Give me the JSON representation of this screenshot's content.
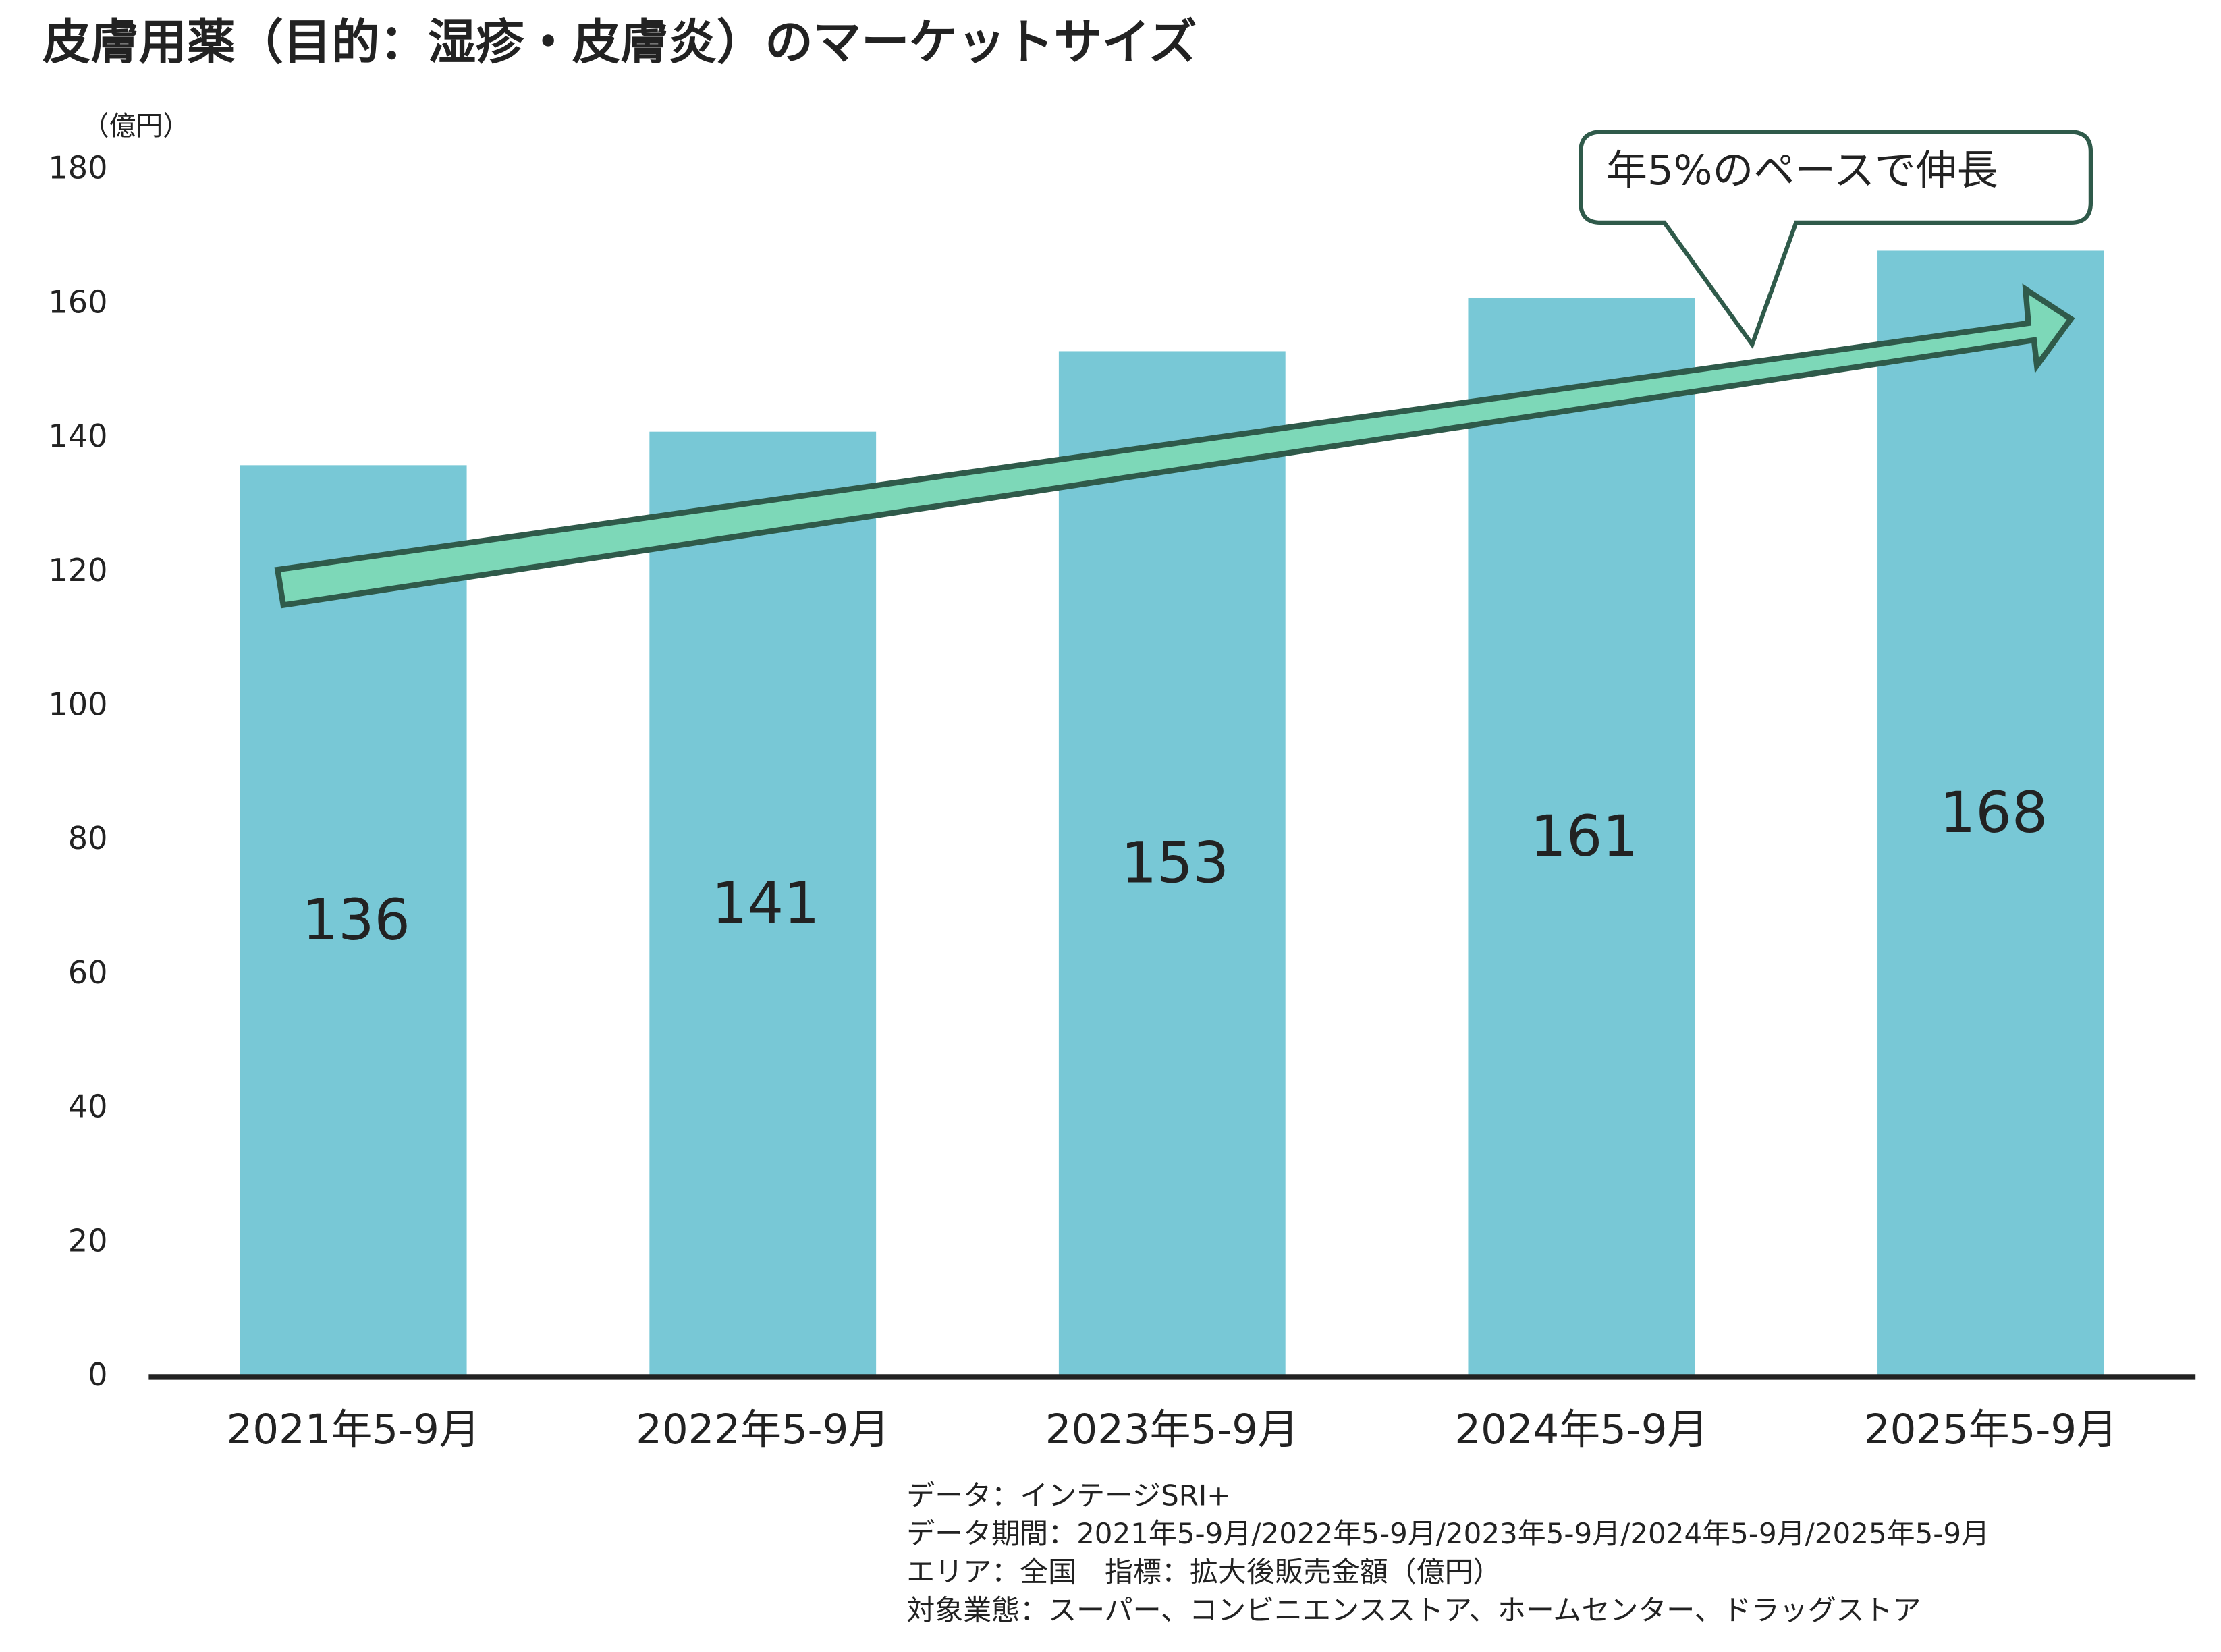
{
  "chart_data": {
    "type": "bar",
    "title": "皮膚用薬（目的：湿疹・皮膚炎）のマーケットサイズ",
    "y_unit": "（億円）",
    "annotation": "年5%のペースで伸長",
    "categories": [
      "2021年5-9月",
      "2022年5-9月",
      "2023年5-9月",
      "2024年5-9月",
      "2025年5-9月"
    ],
    "values": [
      136,
      141,
      153,
      161,
      168
    ],
    "color": "#78c8d6",
    "ylim": [
      0,
      180
    ],
    "yticks": [
      0,
      20,
      40,
      60,
      80,
      100,
      120,
      140,
      160,
      180
    ],
    "grid": false,
    "notes": [
      "データ：インテージSRI+",
      "データ期間：2021年5-9月/2022年5-9月/2023年5-9月/2024年5-9月/2025年5-9月",
      "エリア：全国　指標：拡大後販売金額（億円）",
      "対象業態：スーパー、コンビニエンスストア、ホームセンター、ドラッグストア"
    ]
  }
}
